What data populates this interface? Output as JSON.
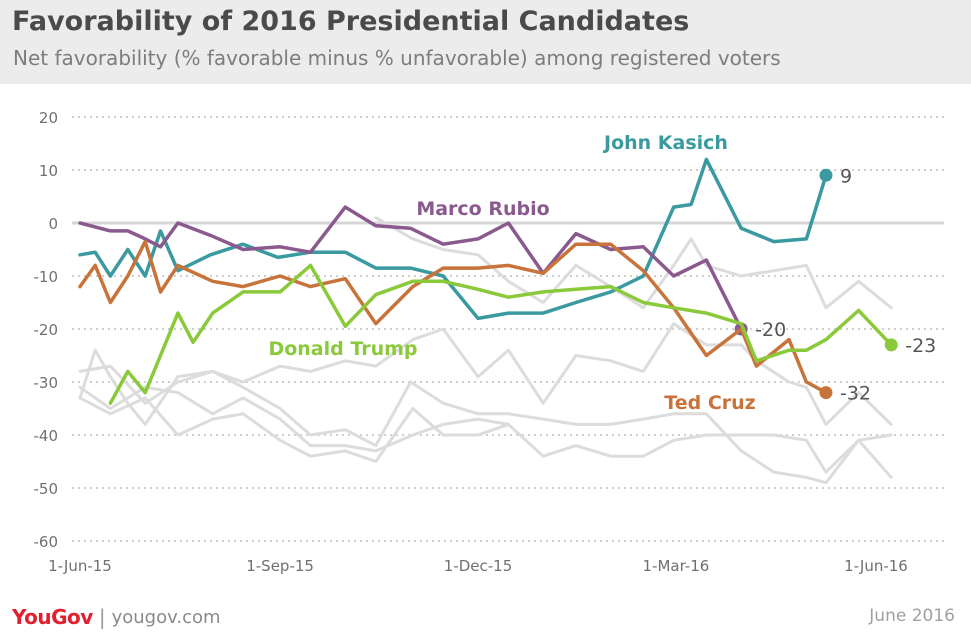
{
  "title": "Favorability of 2016 Presidential Candidates",
  "subtitle": "Net favorability (% favorable minus % unfavorable) among registered voters",
  "footer": {
    "brand": "YouGov",
    "separator": "|",
    "site": "yougov.com",
    "date": "June 2016"
  },
  "chart_data": {
    "type": "line",
    "ylim": [
      -60,
      20
    ],
    "yticks": [
      20,
      10,
      0,
      -10,
      -20,
      -30,
      -40,
      -50,
      -60
    ],
    "xlim": [
      "2015-06-01",
      "2016-06-30"
    ],
    "xticks": [
      {
        "label": "1-Jun-15",
        "date": "2015-06-01"
      },
      {
        "label": "1-Sep-15",
        "date": "2015-09-01"
      },
      {
        "label": "1-Dec-15",
        "date": "2015-12-01"
      },
      {
        "label": "1-Mar-16",
        "date": "2016-03-01"
      },
      {
        "label": "1-Jun-16",
        "date": "2016-06-01"
      }
    ],
    "grid": true,
    "series": [
      {
        "name": "John Kasich",
        "color": "#3a9aa0",
        "end_label": "9",
        "points": [
          [
            "2015-06-01",
            -6
          ],
          [
            "2015-06-08",
            -5.5
          ],
          [
            "2015-06-15",
            -10
          ],
          [
            "2015-06-23",
            -5
          ],
          [
            "2015-07-01",
            -10
          ],
          [
            "2015-07-08",
            -1.5
          ],
          [
            "2015-07-16",
            -9
          ],
          [
            "2015-07-31",
            -6
          ],
          [
            "2015-08-15",
            -4
          ],
          [
            "2015-08-31",
            -6.5
          ],
          [
            "2015-09-15",
            -5.5
          ],
          [
            "2015-10-01",
            -5.5
          ],
          [
            "2015-10-15",
            -8.5
          ],
          [
            "2015-10-31",
            -8.5
          ],
          [
            "2015-11-15",
            -10
          ],
          [
            "2015-12-01",
            -18
          ],
          [
            "2015-12-15",
            -17
          ],
          [
            "2015-12-31",
            -17
          ],
          [
            "2016-01-15",
            -15
          ],
          [
            "2016-01-31",
            -13
          ],
          [
            "2016-02-15",
            -10
          ],
          [
            "2016-02-29",
            3
          ],
          [
            "2016-03-08",
            3.5
          ],
          [
            "2016-03-15",
            12
          ],
          [
            "2016-03-31",
            -1
          ],
          [
            "2016-04-15",
            -3.5
          ],
          [
            "2016-04-30",
            -3
          ],
          [
            "2016-05-09",
            9
          ]
        ]
      },
      {
        "name": "Marco Rubio",
        "color": "#8a5a8e",
        "end_label": "-20",
        "points": [
          [
            "2015-06-01",
            0
          ],
          [
            "2015-06-15",
            -1.5
          ],
          [
            "2015-06-23",
            -1.5
          ],
          [
            "2015-07-01",
            -3
          ],
          [
            "2015-07-08",
            -4.5
          ],
          [
            "2015-07-16",
            0
          ],
          [
            "2015-08-01",
            -2.5
          ],
          [
            "2015-08-15",
            -5
          ],
          [
            "2015-09-01",
            -4.5
          ],
          [
            "2015-09-15",
            -5.5
          ],
          [
            "2015-10-01",
            3
          ],
          [
            "2015-10-15",
            -0.5
          ],
          [
            "2015-10-31",
            -1
          ],
          [
            "2015-11-15",
            -4
          ],
          [
            "2015-12-01",
            -3
          ],
          [
            "2015-12-15",
            0
          ],
          [
            "2015-12-31",
            -9.5
          ],
          [
            "2016-01-15",
            -2
          ],
          [
            "2016-01-31",
            -5
          ],
          [
            "2016-02-15",
            -4.5
          ],
          [
            "2016-02-29",
            -10
          ],
          [
            "2016-03-15",
            -7
          ],
          [
            "2016-03-31",
            -20
          ]
        ]
      },
      {
        "name": "Ted Cruz",
        "color": "#c8733a",
        "end_label": "-32",
        "points": [
          [
            "2015-06-01",
            -12
          ],
          [
            "2015-06-08",
            -8
          ],
          [
            "2015-06-15",
            -15
          ],
          [
            "2015-06-23",
            -10
          ],
          [
            "2015-07-01",
            -3.5
          ],
          [
            "2015-07-08",
            -13
          ],
          [
            "2015-07-16",
            -8
          ],
          [
            "2015-08-01",
            -11
          ],
          [
            "2015-08-15",
            -12
          ],
          [
            "2015-09-01",
            -10
          ],
          [
            "2015-09-15",
            -12
          ],
          [
            "2015-10-01",
            -10.5
          ],
          [
            "2015-10-15",
            -19
          ],
          [
            "2015-11-01",
            -12
          ],
          [
            "2015-11-15",
            -8.5
          ],
          [
            "2015-12-01",
            -8.5
          ],
          [
            "2015-12-15",
            -8
          ],
          [
            "2015-12-31",
            -9.5
          ],
          [
            "2016-01-15",
            -4
          ],
          [
            "2016-01-31",
            -4
          ],
          [
            "2016-02-15",
            -9
          ],
          [
            "2016-02-29",
            -16
          ],
          [
            "2016-03-15",
            -25
          ],
          [
            "2016-03-31",
            -20
          ],
          [
            "2016-04-07",
            -27
          ],
          [
            "2016-04-22",
            -22
          ],
          [
            "2016-04-30",
            -30
          ],
          [
            "2016-05-09",
            -32
          ]
        ]
      },
      {
        "name": "Donald Trump",
        "color": "#8ac93a",
        "end_label": "-23",
        "points": [
          [
            "2015-06-15",
            -34
          ],
          [
            "2015-06-23",
            -28
          ],
          [
            "2015-07-01",
            -32
          ],
          [
            "2015-07-08",
            -25
          ],
          [
            "2015-07-16",
            -17
          ],
          [
            "2015-07-23",
            -22.5
          ],
          [
            "2015-08-01",
            -17
          ],
          [
            "2015-08-15",
            -13
          ],
          [
            "2015-09-01",
            -13
          ],
          [
            "2015-09-15",
            -8
          ],
          [
            "2015-10-01",
            -19.5
          ],
          [
            "2015-10-15",
            -13.5
          ],
          [
            "2015-11-01",
            -11
          ],
          [
            "2015-11-15",
            -11
          ],
          [
            "2015-12-01",
            -12.5
          ],
          [
            "2015-12-15",
            -14
          ],
          [
            "2015-12-31",
            -13
          ],
          [
            "2016-01-15",
            -12.5
          ],
          [
            "2016-01-31",
            -12
          ],
          [
            "2016-02-15",
            -15
          ],
          [
            "2016-02-29",
            -16
          ],
          [
            "2016-03-15",
            -17
          ],
          [
            "2016-03-31",
            -19
          ],
          [
            "2016-04-07",
            -26
          ],
          [
            "2016-04-22",
            -24
          ],
          [
            "2016-04-30",
            -24
          ],
          [
            "2016-05-09",
            -22
          ],
          [
            "2016-05-24",
            -16.5
          ],
          [
            "2016-06-08",
            -23
          ]
        ]
      }
    ],
    "background_series": [
      {
        "name": "",
        "color": "#dcdcdc",
        "points": [
          [
            "2015-06-01",
            -28
          ],
          [
            "2015-06-15",
            -27
          ],
          [
            "2015-07-01",
            -34
          ],
          [
            "2015-07-16",
            -30
          ],
          [
            "2015-08-01",
            -28
          ],
          [
            "2015-08-15",
            -30
          ],
          [
            "2015-09-01",
            -27
          ],
          [
            "2015-09-15",
            -28
          ],
          [
            "2015-10-01",
            -26
          ],
          [
            "2015-10-15",
            -27
          ],
          [
            "2015-11-01",
            -22
          ],
          [
            "2015-11-15",
            -20
          ],
          [
            "2015-12-01",
            -29
          ],
          [
            "2015-12-15",
            -24
          ],
          [
            "2015-12-31",
            -34
          ],
          [
            "2016-01-15",
            -25
          ],
          [
            "2016-01-31",
            -26
          ],
          [
            "2016-02-15",
            -28
          ],
          [
            "2016-02-29",
            -19
          ],
          [
            "2016-03-15",
            -23
          ],
          [
            "2016-03-31",
            -23
          ],
          [
            "2016-04-07",
            -26
          ],
          [
            "2016-04-22",
            -30
          ],
          [
            "2016-04-30",
            -31
          ],
          [
            "2016-05-09",
            -38
          ],
          [
            "2016-05-24",
            -32
          ],
          [
            "2016-06-08",
            -38
          ]
        ]
      },
      {
        "name": "",
        "color": "#dcdcdc",
        "points": [
          [
            "2015-06-01",
            -33
          ],
          [
            "2015-06-08",
            -24
          ],
          [
            "2015-06-15",
            -29
          ],
          [
            "2015-06-23",
            -34
          ],
          [
            "2015-07-01",
            -38
          ],
          [
            "2015-07-16",
            -29
          ],
          [
            "2015-08-01",
            -28
          ],
          [
            "2015-08-15",
            -31
          ],
          [
            "2015-09-01",
            -35
          ],
          [
            "2015-09-15",
            -40
          ],
          [
            "2015-10-01",
            -39
          ],
          [
            "2015-10-15",
            -42
          ],
          [
            "2015-10-31",
            -30
          ],
          [
            "2015-11-15",
            -34
          ],
          [
            "2015-12-01",
            -36
          ],
          [
            "2015-12-15",
            -36
          ],
          [
            "2015-12-31",
            -37
          ],
          [
            "2016-01-15",
            -38
          ],
          [
            "2016-01-31",
            -38
          ],
          [
            "2016-02-15",
            -37
          ],
          [
            "2016-02-29",
            -36
          ],
          [
            "2016-03-15",
            -36
          ],
          [
            "2016-03-31",
            -43
          ],
          [
            "2016-04-15",
            -47
          ],
          [
            "2016-04-30",
            -48
          ],
          [
            "2016-05-09",
            -49
          ],
          [
            "2016-05-24",
            -41
          ],
          [
            "2016-06-08",
            -48
          ]
        ]
      },
      {
        "name": "",
        "color": "#dcdcdc",
        "points": [
          [
            "2015-06-01",
            -33
          ],
          [
            "2015-06-15",
            -36
          ],
          [
            "2015-07-01",
            -33
          ],
          [
            "2015-07-16",
            -40
          ],
          [
            "2015-08-01",
            -37
          ],
          [
            "2015-08-15",
            -36
          ],
          [
            "2015-09-01",
            -41
          ],
          [
            "2015-09-15",
            -44
          ],
          [
            "2015-10-01",
            -43
          ],
          [
            "2015-10-15",
            -45
          ],
          [
            "2015-11-01",
            -35
          ],
          [
            "2015-11-15",
            -40
          ],
          [
            "2015-12-01",
            -40
          ],
          [
            "2015-12-15",
            -38
          ],
          [
            "2015-12-31",
            -44
          ],
          [
            "2016-01-15",
            -42
          ],
          [
            "2016-01-31",
            -44
          ],
          [
            "2016-02-15",
            -44
          ],
          [
            "2016-02-29",
            -41
          ],
          [
            "2016-03-15",
            -40
          ],
          [
            "2016-03-31",
            -40
          ],
          [
            "2016-04-15",
            -40
          ],
          [
            "2016-04-30",
            -41
          ],
          [
            "2016-05-09",
            -47
          ],
          [
            "2016-05-24",
            -41
          ],
          [
            "2016-06-08",
            -40
          ]
        ]
      },
      {
        "name": "",
        "color": "#dcdcdc",
        "points": [
          [
            "2015-06-01",
            -31
          ],
          [
            "2015-06-15",
            -35
          ],
          [
            "2015-07-01",
            -31
          ],
          [
            "2015-07-16",
            -32
          ],
          [
            "2015-08-01",
            -36
          ],
          [
            "2015-08-15",
            -33
          ],
          [
            "2015-09-01",
            -37
          ],
          [
            "2015-09-15",
            -42
          ],
          [
            "2015-10-01",
            -42
          ],
          [
            "2015-10-15",
            -43
          ],
          [
            "2015-11-01",
            -40
          ],
          [
            "2015-11-15",
            -38
          ],
          [
            "2015-12-01",
            -37
          ],
          [
            "2015-12-15",
            -38
          ]
        ]
      },
      {
        "name": "",
        "color": "#dcdcdc",
        "points": [
          [
            "2015-10-15",
            1
          ],
          [
            "2015-11-01",
            -3
          ],
          [
            "2015-11-15",
            -5
          ],
          [
            "2015-12-01",
            -6
          ],
          [
            "2015-12-15",
            -11
          ],
          [
            "2015-12-31",
            -15
          ],
          [
            "2016-01-15",
            -8
          ],
          [
            "2016-01-31",
            -12
          ],
          [
            "2016-02-15",
            -16
          ],
          [
            "2016-02-29",
            -8
          ],
          [
            "2016-03-08",
            -3
          ],
          [
            "2016-03-15",
            -8
          ],
          [
            "2016-03-31",
            -10
          ],
          [
            "2016-04-15",
            -9
          ],
          [
            "2016-04-30",
            -8
          ],
          [
            "2016-05-09",
            -16
          ],
          [
            "2016-05-24",
            -11
          ],
          [
            "2016-06-08",
            -16
          ]
        ]
      }
    ],
    "labels": [
      {
        "text": "John Kasich",
        "color": "#3a9aa0"
      },
      {
        "text": "Marco Rubio",
        "color": "#8a5a8e"
      },
      {
        "text": "Donald Trump",
        "color": "#8ac93a"
      },
      {
        "text": "Ted Cruz",
        "color": "#c8733a"
      }
    ]
  }
}
